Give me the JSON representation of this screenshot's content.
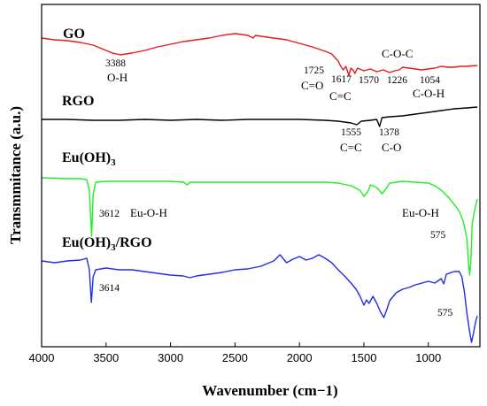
{
  "chart_data": {
    "type": "line",
    "xlabel": "Wavenumber (cm−1)",
    "ylabel": "Transmmitance (a.u.)",
    "xlim": [
      4000,
      600
    ],
    "x_reversed": true,
    "y_ticks_shown": false,
    "x_ticks": [
      "4000",
      "3500",
      "3000",
      "2500",
      "2000",
      "1500",
      "1000"
    ],
    "x_tick_values": [
      4000,
      3500,
      3000,
      2500,
      2000,
      1500,
      1000
    ],
    "series": [
      {
        "name": "GO",
        "color": "#e41a1c",
        "points": [
          [
            4000,
            38
          ],
          [
            3900,
            40
          ],
          [
            3800,
            41
          ],
          [
            3700,
            43
          ],
          [
            3600,
            46
          ],
          [
            3500,
            52
          ],
          [
            3450,
            55
          ],
          [
            3388,
            57
          ],
          [
            3300,
            55
          ],
          [
            3200,
            52
          ],
          [
            3100,
            48
          ],
          [
            3000,
            45
          ],
          [
            2900,
            42
          ],
          [
            2800,
            40
          ],
          [
            2700,
            38
          ],
          [
            2600,
            35
          ],
          [
            2500,
            33
          ],
          [
            2450,
            34
          ],
          [
            2400,
            35
          ],
          [
            2360,
            38
          ],
          [
            2340,
            35
          ],
          [
            2300,
            36
          ],
          [
            2200,
            38
          ],
          [
            2100,
            40
          ],
          [
            2000,
            44
          ],
          [
            1900,
            48
          ],
          [
            1800,
            53
          ],
          [
            1750,
            56
          ],
          [
            1725,
            60
          ],
          [
            1700,
            64
          ],
          [
            1680,
            70
          ],
          [
            1660,
            74
          ],
          [
            1640,
            70
          ],
          [
            1617,
            80
          ],
          [
            1600,
            72
          ],
          [
            1580,
            75
          ],
          [
            1570,
            78
          ],
          [
            1550,
            72
          ],
          [
            1500,
            75
          ],
          [
            1450,
            73
          ],
          [
            1400,
            76
          ],
          [
            1350,
            74
          ],
          [
            1300,
            77
          ],
          [
            1260,
            75
          ],
          [
            1226,
            74
          ],
          [
            1200,
            71
          ],
          [
            1150,
            72
          ],
          [
            1100,
            73
          ],
          [
            1054,
            74
          ],
          [
            1000,
            73
          ],
          [
            950,
            72
          ],
          [
            900,
            70
          ],
          [
            850,
            71
          ],
          [
            800,
            71
          ],
          [
            750,
            70
          ],
          [
            700,
            70
          ],
          [
            620,
            69
          ]
        ]
      },
      {
        "name": "RGO",
        "color": "#000000",
        "points": [
          [
            4000,
            130
          ],
          [
            3800,
            130
          ],
          [
            3600,
            131
          ],
          [
            3400,
            131
          ],
          [
            3200,
            130
          ],
          [
            3000,
            131
          ],
          [
            2800,
            130
          ],
          [
            2600,
            131
          ],
          [
            2400,
            130
          ],
          [
            2200,
            130
          ],
          [
            2000,
            130
          ],
          [
            1800,
            131
          ],
          [
            1700,
            132
          ],
          [
            1600,
            134
          ],
          [
            1555,
            136
          ],
          [
            1520,
            132
          ],
          [
            1450,
            131
          ],
          [
            1400,
            130
          ],
          [
            1378,
            138
          ],
          [
            1360,
            128
          ],
          [
            1300,
            127
          ],
          [
            1200,
            126
          ],
          [
            1100,
            124
          ],
          [
            1000,
            122
          ],
          [
            900,
            120
          ],
          [
            800,
            118
          ],
          [
            700,
            117
          ],
          [
            620,
            116
          ]
        ]
      },
      {
        "name": "Eu(OH)3",
        "color": "#22ee22",
        "points": [
          [
            4000,
            196
          ],
          [
            3800,
            197
          ],
          [
            3700,
            197
          ],
          [
            3650,
            198
          ],
          [
            3630,
            210
          ],
          [
            3612,
            262
          ],
          [
            3600,
            215
          ],
          [
            3580,
            201
          ],
          [
            3500,
            200
          ],
          [
            3300,
            200
          ],
          [
            3000,
            200
          ],
          [
            2900,
            201
          ],
          [
            2870,
            204
          ],
          [
            2850,
            201
          ],
          [
            2600,
            201
          ],
          [
            2300,
            201
          ],
          [
            2000,
            201
          ],
          [
            1900,
            201
          ],
          [
            1800,
            201
          ],
          [
            1700,
            202
          ],
          [
            1600,
            205
          ],
          [
            1530,
            210
          ],
          [
            1500,
            217
          ],
          [
            1470,
            212
          ],
          [
            1450,
            204
          ],
          [
            1400,
            207
          ],
          [
            1360,
            214
          ],
          [
            1330,
            209
          ],
          [
            1300,
            202
          ],
          [
            1200,
            200
          ],
          [
            1100,
            201
          ],
          [
            1000,
            202
          ],
          [
            950,
            205
          ],
          [
            900,
            210
          ],
          [
            850,
            217
          ],
          [
            800,
            226
          ],
          [
            760,
            234
          ],
          [
            730,
            245
          ],
          [
            700,
            265
          ],
          [
            690,
            290
          ],
          [
            680,
            306
          ],
          [
            670,
            290
          ],
          [
            660,
            248
          ],
          [
            640,
            232
          ],
          [
            620,
            220
          ]
        ]
      },
      {
        "name": "Eu(OH)3/RGO",
        "color": "#1f2ee6",
        "points": [
          [
            4000,
            290
          ],
          [
            3900,
            292
          ],
          [
            3800,
            290
          ],
          [
            3700,
            289
          ],
          [
            3650,
            287
          ],
          [
            3630,
            300
          ],
          [
            3614,
            337
          ],
          [
            3600,
            308
          ],
          [
            3580,
            300
          ],
          [
            3500,
            298
          ],
          [
            3400,
            300
          ],
          [
            3300,
            300
          ],
          [
            3200,
            302
          ],
          [
            3100,
            304
          ],
          [
            3000,
            306
          ],
          [
            2900,
            307
          ],
          [
            2850,
            309
          ],
          [
            2800,
            307
          ],
          [
            2700,
            305
          ],
          [
            2600,
            303
          ],
          [
            2500,
            300
          ],
          [
            2400,
            299
          ],
          [
            2300,
            296
          ],
          [
            2200,
            290
          ],
          [
            2150,
            283
          ],
          [
            2100,
            292
          ],
          [
            2050,
            288
          ],
          [
            2000,
            285
          ],
          [
            1950,
            289
          ],
          [
            1900,
            287
          ],
          [
            1850,
            283
          ],
          [
            1800,
            287
          ],
          [
            1750,
            292
          ],
          [
            1700,
            300
          ],
          [
            1650,
            307
          ],
          [
            1600,
            315
          ],
          [
            1560,
            322
          ],
          [
            1530,
            330
          ],
          [
            1500,
            340
          ],
          [
            1480,
            334
          ],
          [
            1460,
            338
          ],
          [
            1430,
            330
          ],
          [
            1400,
            338
          ],
          [
            1370,
            348
          ],
          [
            1345,
            354
          ],
          [
            1320,
            344
          ],
          [
            1300,
            335
          ],
          [
            1250,
            326
          ],
          [
            1200,
            322
          ],
          [
            1150,
            320
          ],
          [
            1100,
            317
          ],
          [
            1050,
            315
          ],
          [
            1000,
            313
          ],
          [
            950,
            315
          ],
          [
            900,
            310
          ],
          [
            880,
            316
          ],
          [
            860,
            305
          ],
          [
            800,
            302
          ],
          [
            760,
            302
          ],
          [
            740,
            308
          ],
          [
            720,
            325
          ],
          [
            700,
            350
          ],
          [
            680,
            370
          ],
          [
            665,
            382
          ],
          [
            650,
            372
          ],
          [
            635,
            360
          ],
          [
            620,
            352
          ]
        ]
      }
    ],
    "annotations": {
      "go_label": "GO",
      "rgo_label": "RGO",
      "euoh_label_main": "Eu(OH)",
      "euoh_label_sub": "3",
      "eurgo_label_main": "Eu(OH)",
      "eurgo_label_sub": "3",
      "eurgo_label_tail": "/RGO",
      "go_3388": "3388",
      "go_oh": "O-H",
      "go_1725": "1725",
      "go_co": "C=O",
      "go_1617": "1617",
      "go_cc": "C=C",
      "go_1570": "1570",
      "go_1226": "1226",
      "go_1054": "1054",
      "go_coc": "C-O-C",
      "go_coh": "C-O-H",
      "rgo_1555": "1555",
      "rgo_cc": "C=C",
      "rgo_1378": "1378",
      "rgo_co": "C-O",
      "eu_3612": "3612",
      "eu_euoh1": "Eu-O-H",
      "eu_euoh2": "Eu-O-H",
      "eu_575": "575",
      "eurgo_3614": "3614",
      "eurgo_575": "575"
    }
  }
}
